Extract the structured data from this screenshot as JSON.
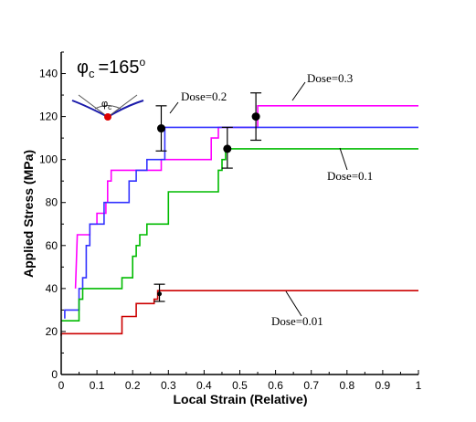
{
  "chart_data": {
    "type": "line",
    "xlabel": "Local Strain (Relative)",
    "ylabel": "Applied Stress (MPa)",
    "xlim": [
      0,
      1
    ],
    "ylim": [
      0,
      150
    ],
    "xticks": [
      "0",
      "0.1",
      "0.2",
      "0.3",
      "0.4",
      "0.5",
      "0.6",
      "0.7",
      "0.8",
      "0.9",
      "1"
    ],
    "yticks": [
      "0",
      "20",
      "40",
      "60",
      "80",
      "100",
      "120",
      "140"
    ],
    "inset": {
      "phi_symbol": "φ",
      "phi_subscript": "c",
      "angle_text": "=165",
      "angle_degree": "o",
      "small_label_symbol": "φ",
      "small_label_sub": "c"
    },
    "series": [
      {
        "name": "Dose=0.3",
        "color": "#ff00ff",
        "x": [
          0.04,
          0.04,
          0.045,
          0.045,
          0.08,
          0.08,
          0.1,
          0.1,
          0.125,
          0.125,
          0.13,
          0.13,
          0.14,
          0.14,
          0.28,
          0.28,
          0.42,
          0.42,
          0.44,
          0.44,
          0.46,
          0.46,
          0.55,
          0.55,
          1.0
        ],
        "y": [
          40,
          40,
          65,
          65,
          65,
          70,
          70,
          75,
          75,
          80,
          80,
          90,
          90,
          95,
          95,
          100,
          100,
          110,
          110,
          115,
          115,
          115,
          115,
          125,
          125
        ]
      },
      {
        "name": "Dose=0.2",
        "color": "#3333ff",
        "x": [
          0.01,
          0.01,
          0.05,
          0.05,
          0.06,
          0.06,
          0.07,
          0.07,
          0.08,
          0.08,
          0.12,
          0.12,
          0.19,
          0.19,
          0.21,
          0.21,
          0.24,
          0.24,
          0.29,
          0.29,
          1.0
        ],
        "y": [
          26,
          30,
          30,
          40,
          40,
          45,
          45,
          60,
          60,
          70,
          70,
          80,
          80,
          90,
          90,
          95,
          95,
          100,
          100,
          115,
          115
        ]
      },
      {
        "name": "Dose=0.1",
        "color": "#00bb00",
        "x": [
          0.0,
          0.05,
          0.05,
          0.06,
          0.06,
          0.17,
          0.17,
          0.2,
          0.2,
          0.21,
          0.21,
          0.22,
          0.22,
          0.24,
          0.24,
          0.3,
          0.3,
          0.44,
          0.44,
          0.45,
          0.45,
          0.46,
          0.46,
          0.47,
          0.47,
          1.0
        ],
        "y": [
          25,
          25,
          35,
          35,
          40,
          40,
          45,
          45,
          55,
          55,
          60,
          60,
          65,
          65,
          70,
          70,
          85,
          85,
          95,
          95,
          100,
          100,
          105,
          105,
          105,
          105
        ]
      },
      {
        "name": "Dose=0.01",
        "color": "#cc0000",
        "x": [
          0.0,
          0.0,
          0.17,
          0.17,
          0.21,
          0.21,
          0.26,
          0.26,
          0.27,
          0.27,
          1.0
        ],
        "y": [
          18,
          19,
          19,
          27,
          27,
          33,
          33,
          35,
          35,
          39,
          39
        ]
      }
    ],
    "error_bars": [
      {
        "x": 0.28,
        "y": 114.5,
        "low": 104,
        "high": 125,
        "marker": "big"
      },
      {
        "x": 0.465,
        "y": 105,
        "low": 96,
        "high": 115,
        "marker": "big"
      },
      {
        "x": 0.545,
        "y": 120,
        "low": 109,
        "high": 131,
        "marker": "big"
      },
      {
        "x": 0.275,
        "y": 37.5,
        "low": 34,
        "high": 42,
        "marker": "small"
      }
    ],
    "annotations": [
      {
        "text": "Dose=0.2",
        "for": "Dose=0.2"
      },
      {
        "text": "Dose=0.3",
        "for": "Dose=0.3"
      },
      {
        "text": "Dose=0.1",
        "for": "Dose=0.1"
      },
      {
        "text": "Dose=0.01",
        "for": "Dose=0.01"
      }
    ]
  }
}
